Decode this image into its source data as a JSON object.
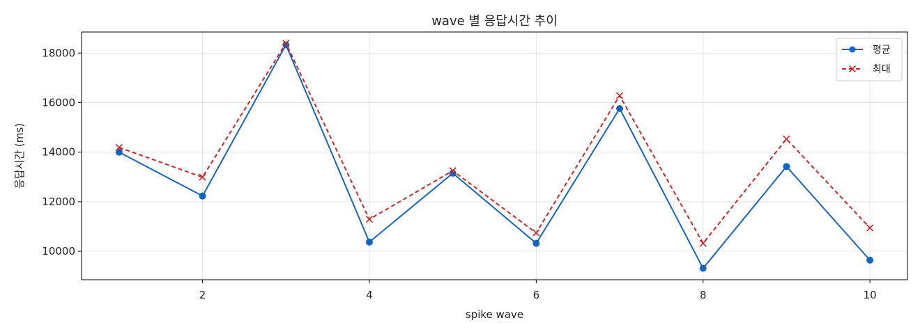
{
  "chart_data": {
    "type": "line",
    "title": "wave 별 응답시간 추이",
    "xlabel": "spike wave",
    "ylabel": "응답시간 (ms)",
    "x": [
      1,
      2,
      3,
      4,
      5,
      6,
      7,
      8,
      9,
      10
    ],
    "xlim": [
      0.55,
      10.45
    ],
    "ylim": [
      8850,
      18850
    ],
    "xticks": [
      2,
      4,
      6,
      8,
      10
    ],
    "yticks": [
      10000,
      12000,
      14000,
      16000,
      18000
    ],
    "grid": true,
    "legend_position": "top-right",
    "series": [
      {
        "name": "평균",
        "color": "#1565c0",
        "marker": "circle",
        "line_style": "solid",
        "values": [
          14000,
          12230,
          18330,
          10370,
          13150,
          10320,
          15760,
          9310,
          13420,
          9640
        ]
      },
      {
        "name": "최대",
        "color": "#c62828",
        "marker": "x",
        "line_style": "dashed",
        "values": [
          14190,
          12990,
          18400,
          11290,
          13250,
          10740,
          16280,
          10320,
          14530,
          10940
        ]
      }
    ]
  }
}
